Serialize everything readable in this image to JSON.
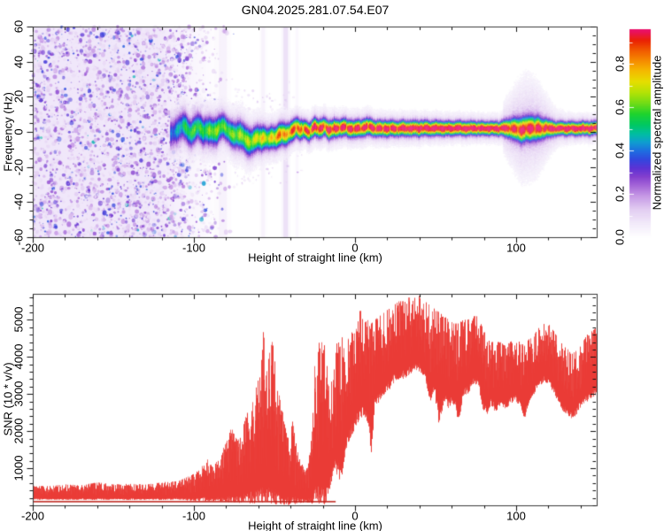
{
  "title": "GN04.2025.281.07.54.E07",
  "colors": {
    "trace_red": "#ea3b36",
    "trace_dark_red": "#be231c",
    "frame": "#3a3a3a",
    "tick": "#111111",
    "noise_tint": "#f0e7fa",
    "stripe_violet": "#cdaaeb"
  },
  "chart_data": [
    {
      "type": "heatmap",
      "panel": "top",
      "xlabel": "Height of straight line (km)",
      "ylabel": "Frequency (Hz)",
      "xlim": [
        -200,
        150
      ],
      "ylim": [
        -60,
        60
      ],
      "x_major_ticks": [
        -200,
        -100,
        0,
        100
      ],
      "x_tick_labels": [
        "-200",
        "-100",
        "0",
        "100"
      ],
      "x_minor_step": 20,
      "y_major_ticks": [
        60,
        40,
        20,
        0,
        -20,
        -40,
        -60
      ],
      "y_tick_labels": [
        "60",
        "40",
        "20",
        "0",
        "-20",
        "-40",
        "-60"
      ],
      "y_minor_step": 5,
      "colorbar": {
        "label": "Normalized spectral amplitude",
        "ticks": [
          0.0,
          0.2,
          0.4,
          0.6,
          0.8
        ],
        "tick_labels": [
          "0.0",
          "0.2",
          "0.4",
          "0.6",
          "0.8"
        ],
        "range": [
          0,
          0.96
        ],
        "colormap_stops": [
          [
            0.0,
            "#ffffff"
          ],
          [
            0.06,
            "#f3ecfa"
          ],
          [
            0.13,
            "#e2cdf2"
          ],
          [
            0.19,
            "#c79ae6"
          ],
          [
            0.24,
            "#a566d8"
          ],
          [
            0.28,
            "#8440ce"
          ],
          [
            0.32,
            "#5c33d4"
          ],
          [
            0.36,
            "#3347de"
          ],
          [
            0.4,
            "#1e6ee0"
          ],
          [
            0.44,
            "#0f9ed0"
          ],
          [
            0.48,
            "#00bfa0"
          ],
          [
            0.52,
            "#00c862"
          ],
          [
            0.57,
            "#1ed32e"
          ],
          [
            0.62,
            "#71dc16"
          ],
          [
            0.67,
            "#b4e206"
          ],
          [
            0.72,
            "#e6de00"
          ],
          [
            0.77,
            "#f5b800"
          ],
          [
            0.82,
            "#f58700"
          ],
          [
            0.87,
            "#f05300"
          ],
          [
            0.91,
            "#ea2104"
          ],
          [
            0.95,
            "#e9115f"
          ],
          [
            1.0,
            "#ee1587"
          ]
        ]
      },
      "noise_region": {
        "x_range": [
          -200,
          -70
        ],
        "full_density_until": -108,
        "amplitude_range": [
          0.05,
          0.4
        ]
      },
      "vertical_stripes": [
        {
          "x": -43,
          "alpha": 0.28,
          "w": 5
        },
        {
          "x": -57,
          "alpha": 0.1,
          "w": 4
        },
        {
          "x": -82,
          "alpha": 0.1,
          "w": 9
        },
        {
          "x": -36,
          "alpha": 0.06,
          "w": 3
        }
      ],
      "halo_bump": {
        "center": 107,
        "span": 14,
        "extra_hz": 9
      },
      "ridge": [
        [
          -114,
          0,
          0.3,
          5.0
        ],
        [
          -110,
          1,
          0.38,
          5.0
        ],
        [
          -106,
          3,
          0.45,
          5.0
        ],
        [
          -102,
          0,
          0.5,
          5.0
        ],
        [
          -98,
          3,
          0.52,
          5.0
        ],
        [
          -94,
          -1,
          0.5,
          5.0
        ],
        [
          -90,
          2,
          0.55,
          5.0
        ],
        [
          -86,
          0,
          0.58,
          5.0
        ],
        [
          -82,
          3,
          0.52,
          4.5
        ],
        [
          -78,
          1,
          0.55,
          4.5
        ],
        [
          -74,
          -2,
          0.55,
          5.0
        ],
        [
          -70,
          -3,
          0.58,
          5.0
        ],
        [
          -66,
          -5,
          0.6,
          5.0
        ],
        [
          -62,
          -4,
          0.62,
          4.5
        ],
        [
          -58,
          -5,
          0.7,
          4.5
        ],
        [
          -55,
          -3,
          0.62,
          4.0
        ],
        [
          -52,
          -2,
          0.66,
          4.0
        ],
        [
          -49,
          -4,
          0.72,
          4.0
        ],
        [
          -46,
          -2,
          0.85,
          4.0
        ],
        [
          -43,
          -1,
          0.72,
          4.0
        ],
        [
          -40,
          1,
          0.8,
          3.5
        ],
        [
          -37,
          2,
          0.9,
          3.5
        ],
        [
          -34,
          0,
          0.78,
          3.5
        ],
        [
          -31,
          2,
          0.88,
          3.0
        ],
        [
          -28,
          1,
          0.82,
          3.0
        ],
        [
          -25,
          3,
          0.9,
          3.0
        ],
        [
          -22,
          2,
          0.92,
          3.0
        ],
        [
          -19,
          3,
          0.85,
          3.0
        ],
        [
          -16,
          1,
          0.9,
          3.0
        ],
        [
          -13,
          2,
          0.92,
          3.0
        ],
        [
          -10,
          2,
          0.9,
          2.8
        ],
        [
          -7,
          3,
          0.92,
          2.8
        ],
        [
          -4,
          2,
          0.9,
          2.8
        ],
        [
          0,
          2,
          0.92,
          2.8
        ],
        [
          4,
          2,
          0.9,
          2.8
        ],
        [
          8,
          3,
          0.92,
          2.8
        ],
        [
          12,
          2,
          0.93,
          2.6
        ],
        [
          16,
          2,
          0.92,
          2.6
        ],
        [
          20,
          2,
          0.94,
          2.6
        ],
        [
          25,
          2,
          0.93,
          2.5
        ],
        [
          30,
          2,
          0.95,
          2.5
        ],
        [
          35,
          2,
          0.95,
          2.5
        ],
        [
          40,
          2,
          0.94,
          2.5
        ],
        [
          45,
          2,
          0.95,
          2.4
        ],
        [
          50,
          2,
          0.96,
          2.4
        ],
        [
          60,
          2,
          0.96,
          2.3
        ],
        [
          70,
          2,
          0.95,
          2.3
        ],
        [
          80,
          2,
          0.96,
          2.2
        ],
        [
          90,
          2,
          0.95,
          2.2
        ],
        [
          98,
          2,
          0.88,
          3.5
        ],
        [
          103,
          1,
          0.9,
          4.2
        ],
        [
          108,
          2,
          0.92,
          4.2
        ],
        [
          113,
          2,
          0.9,
          4.0
        ],
        [
          118,
          2,
          0.92,
          3.2
        ],
        [
          125,
          2,
          0.96,
          2.2
        ],
        [
          135,
          2,
          0.96,
          2.2
        ],
        [
          150,
          2,
          0.96,
          2.2
        ]
      ]
    },
    {
      "type": "line",
      "panel": "bottom",
      "xlabel": "Height of straight line (km)",
      "ylabel": "SNR (10 * v/v)",
      "xlim": [
        -200,
        150
      ],
      "ylim": [
        0,
        5700
      ],
      "x_major_ticks": [
        -200,
        -100,
        0,
        100
      ],
      "x_tick_labels": [
        "-200",
        "-100",
        "0",
        "100"
      ],
      "x_minor_step": 20,
      "y_major_ticks": [
        5000,
        4000,
        3000,
        2000,
        1000
      ],
      "y_tick_labels": [
        "5000",
        "4000",
        "3000",
        "2000",
        "1000"
      ],
      "y_minor_step": 200,
      "baseline": {
        "value": 120,
        "x_range": [
          -200,
          -12
        ]
      },
      "series": [
        {
          "name": "SNR",
          "color": "#ea3b36",
          "envelope": [
            [
              -200,
              150,
              520
            ],
            [
              -190,
              150,
              520
            ],
            [
              -180,
              140,
              560
            ],
            [
              -170,
              150,
              540
            ],
            [
              -160,
              140,
              620
            ],
            [
              -150,
              150,
              560
            ],
            [
              -140,
              140,
              580
            ],
            [
              -130,
              150,
              560
            ],
            [
              -120,
              140,
              620
            ],
            [
              -110,
              150,
              650
            ],
            [
              -105,
              130,
              750
            ],
            [
              -100,
              120,
              850
            ],
            [
              -96,
              110,
              1000
            ],
            [
              -92,
              100,
              1250
            ],
            [
              -88,
              110,
              1000
            ],
            [
              -84,
              100,
              1400
            ],
            [
              -80,
              90,
              1700
            ],
            [
              -77,
              80,
              2100
            ],
            [
              -74,
              70,
              1800
            ],
            [
              -71,
              60,
              1900
            ],
            [
              -68,
              60,
              2400
            ],
            [
              -65,
              50,
              2700
            ],
            [
              -62,
              40,
              3100
            ],
            [
              -59,
              40,
              3600
            ],
            [
              -57,
              30,
              4750
            ],
            [
              -55,
              30,
              3600
            ],
            [
              -53,
              20,
              4200
            ],
            [
              -51,
              20,
              4500
            ],
            [
              -49,
              20,
              3400
            ],
            [
              -47,
              15,
              2900
            ],
            [
              -45,
              10,
              2500
            ],
            [
              -43,
              10,
              2100
            ],
            [
              -41,
              10,
              1700
            ],
            [
              -39,
              20,
              2300
            ],
            [
              -37,
              20,
              1700
            ],
            [
              -35,
              30,
              1400
            ],
            [
              -33,
              60,
              1100
            ],
            [
              -31,
              80,
              900
            ],
            [
              -29,
              60,
              1300
            ],
            [
              -27,
              40,
              1900
            ],
            [
              -25,
              20,
              4200
            ],
            [
              -23,
              10,
              4600
            ],
            [
              -21,
              15,
              4400
            ],
            [
              -19,
              30,
              4300
            ],
            [
              -17,
              200,
              3600
            ],
            [
              -15,
              600,
              3300
            ],
            [
              -13,
              900,
              3700
            ],
            [
              -11,
              800,
              4600
            ],
            [
              -9,
              500,
              4700
            ],
            [
              -7,
              1200,
              4300
            ],
            [
              -5,
              1600,
              4400
            ],
            [
              -3,
              1800,
              4700
            ],
            [
              -1,
              2000,
              4600
            ],
            [
              1,
              2200,
              4800
            ],
            [
              3,
              2300,
              5300
            ],
            [
              5,
              2400,
              4900
            ],
            [
              8,
              2200,
              5000
            ],
            [
              10,
              1300,
              4900
            ],
            [
              12,
              2600,
              5000
            ],
            [
              15,
              2800,
              5100
            ],
            [
              18,
              3000,
              5200
            ],
            [
              21,
              3100,
              5300
            ],
            [
              24,
              3300,
              5400
            ],
            [
              27,
              3400,
              5500
            ],
            [
              30,
              3400,
              5500
            ],
            [
              33,
              3500,
              5600
            ],
            [
              36,
              3600,
              5600
            ],
            [
              40,
              3600,
              5650
            ],
            [
              43,
              3400,
              5500
            ],
            [
              46,
              2700,
              5400
            ],
            [
              49,
              3000,
              5300
            ],
            [
              52,
              2100,
              5200
            ],
            [
              55,
              2800,
              5100
            ],
            [
              58,
              2600,
              5000
            ],
            [
              61,
              2700,
              4900
            ],
            [
              64,
              2200,
              4900
            ],
            [
              67,
              2900,
              5000
            ],
            [
              70,
              3000,
              5000
            ],
            [
              73,
              3200,
              5100
            ],
            [
              76,
              3300,
              5100
            ],
            [
              79,
              2600,
              4800
            ],
            [
              82,
              2400,
              4500
            ],
            [
              84,
              2700,
              4400
            ],
            [
              87,
              2500,
              4400
            ],
            [
              90,
              2700,
              4400
            ],
            [
              93,
              2600,
              4300
            ],
            [
              96,
              2700,
              4400
            ],
            [
              99,
              2800,
              4500
            ],
            [
              102,
              2700,
              4400
            ],
            [
              105,
              2300,
              4300
            ],
            [
              108,
              2800,
              4500
            ],
            [
              111,
              3000,
              4600
            ],
            [
              114,
              3200,
              4800
            ],
            [
              117,
              3300,
              4900
            ],
            [
              120,
              3300,
              4900
            ],
            [
              123,
              3000,
              4700
            ],
            [
              126,
              2800,
              4500
            ],
            [
              129,
              2500,
              4300
            ],
            [
              132,
              2400,
              4200
            ],
            [
              135,
              2300,
              4100
            ],
            [
              138,
              2500,
              4200
            ],
            [
              141,
              2700,
              4400
            ],
            [
              144,
              2800,
              4600
            ],
            [
              147,
              2900,
              4700
            ],
            [
              150,
              3000,
              4800
            ]
          ]
        }
      ]
    }
  ]
}
